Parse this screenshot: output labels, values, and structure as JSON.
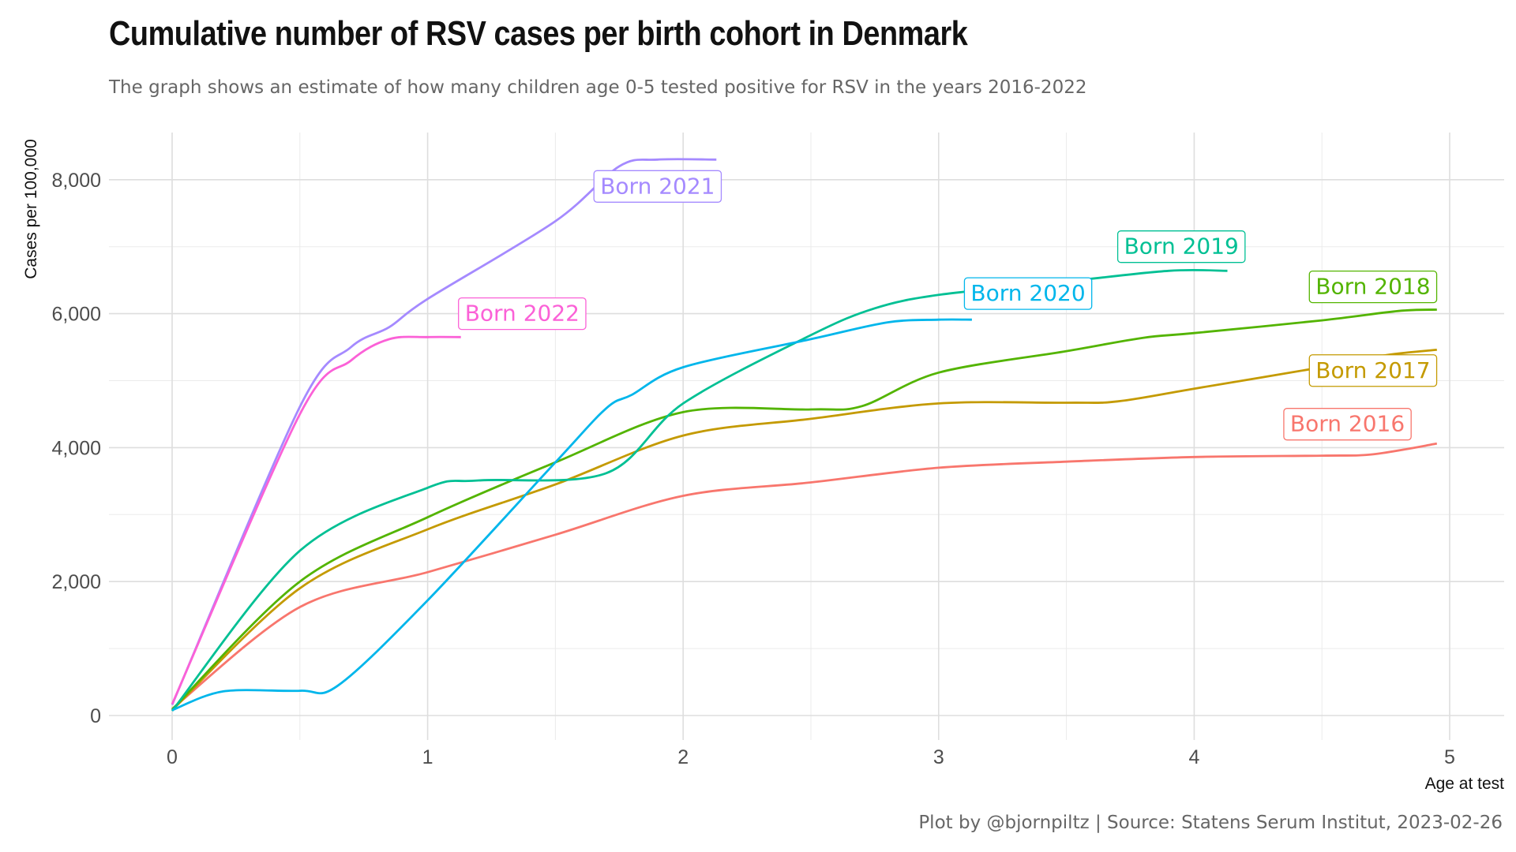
{
  "title": "Cumulative number of RSV cases per birth cohort in Denmark",
  "subtitle": "The graph shows an estimate of how many children age 0-5 tested positive for RSV in the years 2016-2022",
  "caption": "Plot by @bjornpiltz | Source: Statens Serum Institut, 2023-02-26",
  "chart_data": {
    "type": "line",
    "xlabel": "Age at test",
    "ylabel": "Cases per 100,000",
    "xlim": [
      0,
      5
    ],
    "ylim": [
      0,
      8500
    ],
    "x_ticks": [
      0,
      1,
      2,
      3,
      4,
      5
    ],
    "x_tick_labels": [
      "0",
      "1",
      "2",
      "3",
      "4",
      "5"
    ],
    "y_ticks": [
      0,
      2000,
      4000,
      6000,
      8000
    ],
    "y_tick_labels": [
      "0",
      "2,000",
      "4,000",
      "6,000",
      "8,000"
    ],
    "grid": true,
    "legend": "none (direct labels)",
    "series": [
      {
        "name": "Born 2016",
        "color": "#F8766D",
        "label_at": [
          4.6,
          4350
        ],
        "points": [
          [
            0,
            100
          ],
          [
            0.5,
            1620
          ],
          [
            1.0,
            2140
          ],
          [
            1.5,
            2700
          ],
          [
            2.0,
            3280
          ],
          [
            2.5,
            3480
          ],
          [
            3.0,
            3700
          ],
          [
            3.5,
            3790
          ],
          [
            4.0,
            3860
          ],
          [
            4.5,
            3880
          ],
          [
            4.7,
            3900
          ],
          [
            4.95,
            4060
          ]
        ]
      },
      {
        "name": "Born 2017",
        "color": "#C49A00",
        "label_at": [
          4.7,
          5150
        ],
        "points": [
          [
            0,
            80
          ],
          [
            0.5,
            1900
          ],
          [
            1.0,
            2780
          ],
          [
            1.5,
            3450
          ],
          [
            2.0,
            4180
          ],
          [
            2.5,
            4430
          ],
          [
            3.0,
            4660
          ],
          [
            3.5,
            4670
          ],
          [
            3.7,
            4690
          ],
          [
            4.0,
            4880
          ],
          [
            4.5,
            5200
          ],
          [
            4.75,
            5380
          ],
          [
            4.95,
            5460
          ]
        ]
      },
      {
        "name": "Born 2018",
        "color": "#53B400",
        "label_at": [
          4.7,
          6400
        ],
        "points": [
          [
            0,
            90
          ],
          [
            0.5,
            2000
          ],
          [
            1.0,
            2960
          ],
          [
            1.5,
            3780
          ],
          [
            2.0,
            4530
          ],
          [
            2.5,
            4570
          ],
          [
            2.7,
            4620
          ],
          [
            3.0,
            5120
          ],
          [
            3.5,
            5440
          ],
          [
            3.8,
            5640
          ],
          [
            4.0,
            5710
          ],
          [
            4.5,
            5900
          ],
          [
            4.8,
            6040
          ],
          [
            4.95,
            6060
          ]
        ]
      },
      {
        "name": "Born 2019",
        "color": "#00C094",
        "label_at": [
          3.95,
          7000
        ],
        "points": [
          [
            0,
            70
          ],
          [
            0.5,
            2460
          ],
          [
            1.0,
            3400
          ],
          [
            1.2,
            3510
          ],
          [
            1.7,
            3620
          ],
          [
            2.0,
            4660
          ],
          [
            2.5,
            5680
          ],
          [
            2.75,
            6080
          ],
          [
            3.0,
            6280
          ],
          [
            3.5,
            6480
          ],
          [
            3.9,
            6640
          ],
          [
            4.13,
            6640
          ]
        ]
      },
      {
        "name": "Born 2020",
        "color": "#00B6EB",
        "label_at": [
          3.35,
          6300
        ],
        "points": [
          [
            0,
            80
          ],
          [
            0.2,
            360
          ],
          [
            0.5,
            370
          ],
          [
            0.65,
            450
          ],
          [
            1.0,
            1720
          ],
          [
            1.5,
            3780
          ],
          [
            1.7,
            4590
          ],
          [
            1.8,
            4790
          ],
          [
            2.0,
            5200
          ],
          [
            2.5,
            5620
          ],
          [
            2.8,
            5870
          ],
          [
            3.0,
            5910
          ],
          [
            3.13,
            5910
          ]
        ]
      },
      {
        "name": "Born 2021",
        "color": "#A58AFF",
        "label_at": [
          1.9,
          7900
        ],
        "points": [
          [
            0,
            160
          ],
          [
            0.5,
            4610
          ],
          [
            0.7,
            5500
          ],
          [
            0.85,
            5800
          ],
          [
            1.0,
            6220
          ],
          [
            1.5,
            7380
          ],
          [
            1.75,
            8200
          ],
          [
            1.9,
            8300
          ],
          [
            2.13,
            8300
          ]
        ]
      },
      {
        "name": "Born 2022",
        "color": "#FB61D7",
        "label_at": [
          1.37,
          6000
        ],
        "points": [
          [
            0,
            170
          ],
          [
            0.5,
            4500
          ],
          [
            0.7,
            5300
          ],
          [
            0.85,
            5620
          ],
          [
            1.0,
            5650
          ],
          [
            1.13,
            5650
          ]
        ]
      }
    ]
  }
}
